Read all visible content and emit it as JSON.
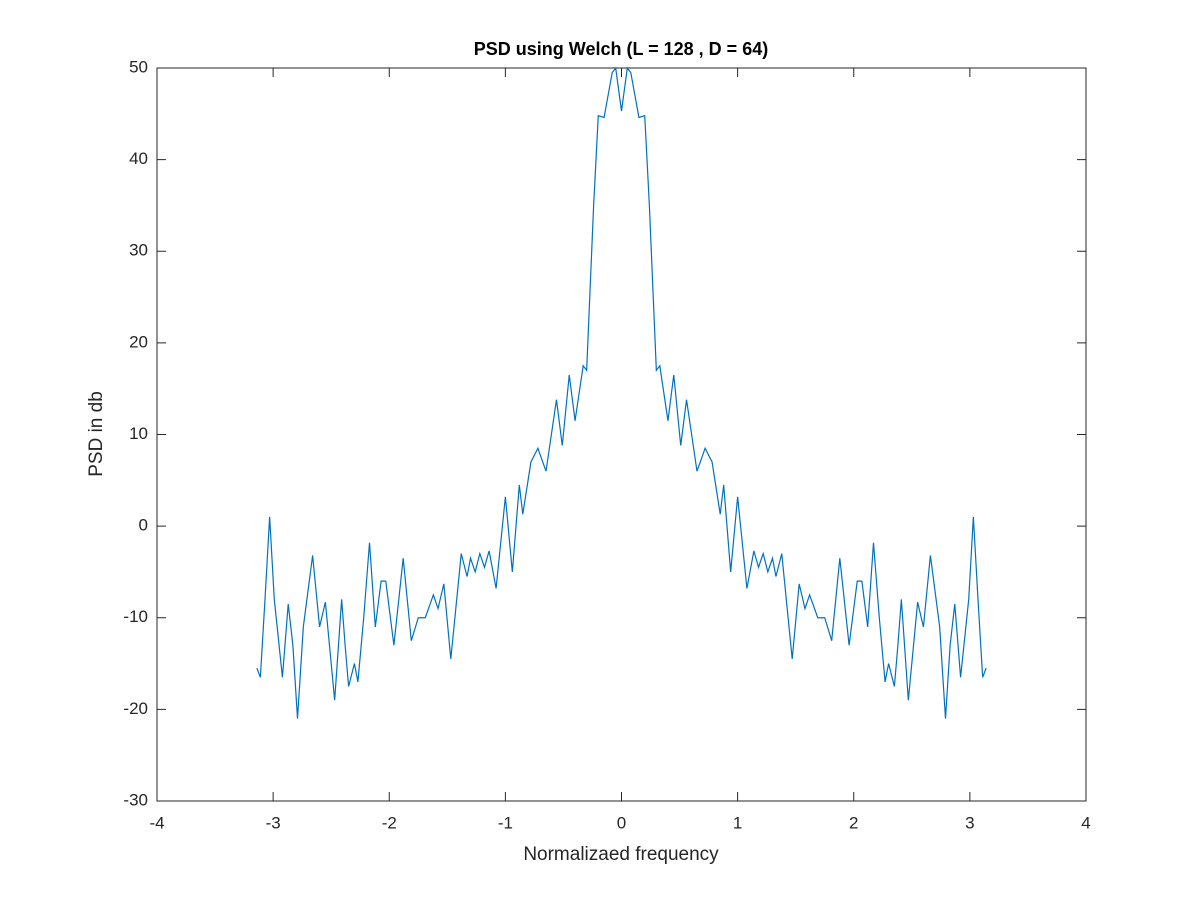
{
  "chart_data": {
    "type": "line",
    "title": "PSD using Welch (L = 128 , D = 64)",
    "x_label": "Normalizaed frequency",
    "y_label": "PSD in db",
    "xlim": [
      -4,
      4
    ],
    "xticks": [
      -4,
      -3,
      -2,
      -1,
      0,
      1,
      2,
      3,
      4
    ],
    "ylim": [
      -30,
      50
    ],
    "yticks": [
      -30,
      -20,
      -10,
      0,
      10,
      20,
      30,
      40,
      50
    ],
    "grid": false,
    "series": [
      {
        "name": "PSD",
        "color": "#0072bd",
        "x": [
          -3.14,
          -3.11,
          -3.07,
          -3.03,
          -2.99,
          -2.92,
          -2.87,
          -2.83,
          -2.79,
          -2.74,
          -2.66,
          -2.6,
          -2.55,
          -2.47,
          -2.41,
          -2.38,
          -2.35,
          -2.3,
          -2.27,
          -2.22,
          -2.17,
          -2.12,
          -2.07,
          -2.03,
          -1.96,
          -1.88,
          -1.81,
          -1.75,
          -1.69,
          -1.62,
          -1.58,
          -1.53,
          -1.47,
          -1.38,
          -1.33,
          -1.3,
          -1.26,
          -1.22,
          -1.18,
          -1.14,
          -1.08,
          -1,
          -0.94,
          -0.88,
          -0.85,
          -0.78,
          -0.72,
          -0.65,
          -0.56,
          -0.51,
          -0.45,
          -0.4,
          -0.33,
          -0.3,
          -0.24,
          -0.2,
          -0.15,
          -0.08,
          -0.05,
          0,
          0.05,
          0.08,
          0.15,
          0.2,
          0.24,
          0.3,
          0.33,
          0.4,
          0.45,
          0.51,
          0.56,
          0.65,
          0.72,
          0.78,
          0.85,
          0.88,
          0.94,
          1,
          1.08,
          1.14,
          1.18,
          1.22,
          1.26,
          1.3,
          1.33,
          1.38,
          1.47,
          1.53,
          1.58,
          1.62,
          1.69,
          1.75,
          1.81,
          1.88,
          1.96,
          2.03,
          2.07,
          2.12,
          2.17,
          2.22,
          2.27,
          2.3,
          2.35,
          2.38,
          2.41,
          2.47,
          2.55,
          2.6,
          2.66,
          2.74,
          2.79,
          2.83,
          2.87,
          2.92,
          2.99,
          3.03,
          3.07,
          3.11,
          3.14
        ],
        "values": [
          -15.5,
          -16.5,
          -8,
          1,
          -8,
          -16.5,
          -8.5,
          -13,
          -21,
          -11,
          -3.2,
          -11,
          -8.3,
          -19,
          -8,
          -13,
          -17.5,
          -15,
          -17,
          -10,
          -1.8,
          -11,
          -6,
          -6,
          -13,
          -3.5,
          -12.5,
          -10,
          -10,
          -7.5,
          -9,
          -6.3,
          -14.5,
          -3,
          -5.5,
          -3.5,
          -5,
          -3,
          -4.5,
          -2.7,
          -6.8,
          3.2,
          -5,
          4.5,
          1.3,
          7,
          8.5,
          6,
          13.8,
          8.8,
          16.5,
          11.5,
          17.5,
          17,
          35,
          44.8,
          44.6,
          49.5,
          50,
          45.3,
          50,
          49.5,
          44.6,
          44.8,
          35,
          17,
          17.5,
          11.5,
          16.5,
          8.8,
          13.8,
          6,
          8.5,
          7,
          1.3,
          4.5,
          -5,
          3.2,
          -6.8,
          -2.7,
          -4.5,
          -3,
          -5,
          -3.5,
          -5.5,
          -3,
          -14.5,
          -6.3,
          -9,
          -7.5,
          -10,
          -10,
          -12.5,
          -3.5,
          -13,
          -6,
          -6,
          -11,
          -1.8,
          -10,
          -17,
          -15,
          -17.5,
          -13,
          -8,
          -19,
          -8.3,
          -11,
          -3.2,
          -11,
          -21,
          -13,
          -8.5,
          -16.5,
          -8,
          1,
          -8,
          -16.5,
          -15.5
        ]
      }
    ]
  }
}
